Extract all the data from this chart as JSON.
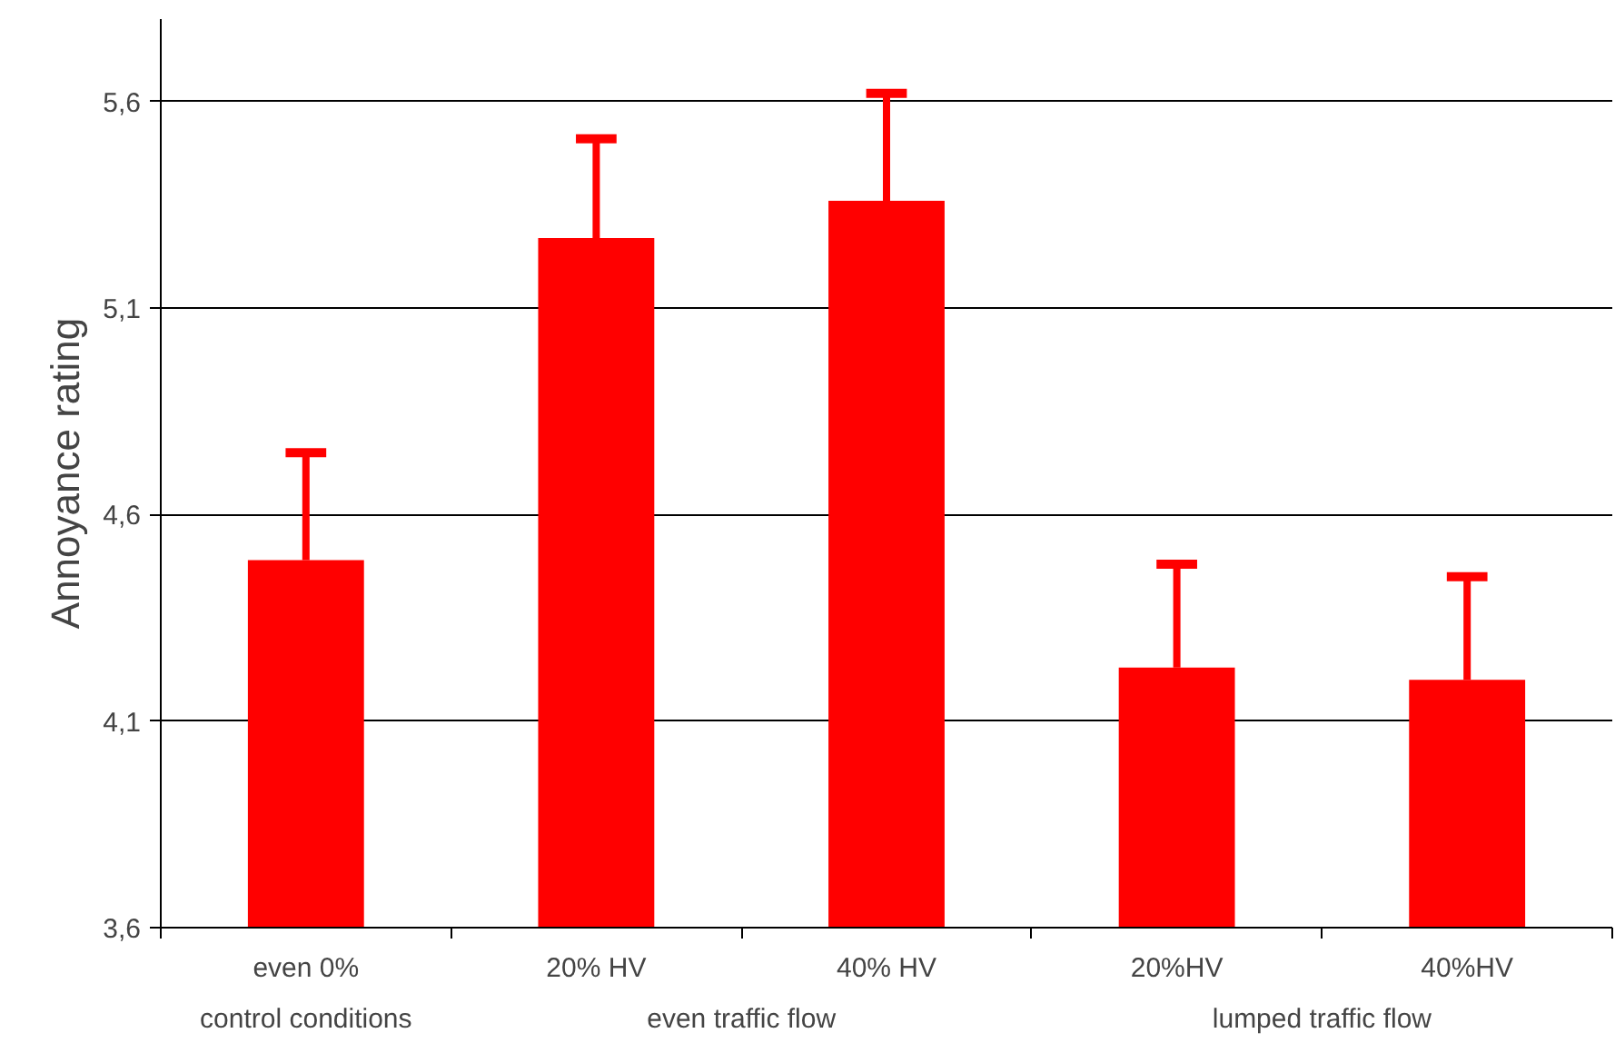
{
  "chart_data": {
    "type": "bar",
    "ylabel": "Annoyance rating",
    "categories": [
      "even 0%",
      "20% HV",
      "40% HV",
      "20%HV",
      "40%HV"
    ],
    "values": [
      4.49,
      5.27,
      5.36,
      4.23,
      4.2
    ],
    "errors": [
      [
        4.49,
        4.75
      ],
      [
        5.27,
        5.51
      ],
      [
        5.36,
        5.62
      ],
      [
        4.23,
        4.48
      ],
      [
        4.2,
        4.45
      ]
    ],
    "color": "#ff0000",
    "ylim": [
      3.6,
      5.8
    ],
    "yticks": [
      {
        "value": 3.6,
        "label": "3,6"
      },
      {
        "value": 4.1,
        "label": "4,1"
      },
      {
        "value": 4.6,
        "label": "4,6"
      },
      {
        "value": 5.1,
        "label": "5,1"
      },
      {
        "value": 5.6,
        "label": "5,6"
      }
    ],
    "grid": "y",
    "annotations": [
      "control conditions",
      "even traffic flow",
      "lumped traffic flow"
    ]
  }
}
